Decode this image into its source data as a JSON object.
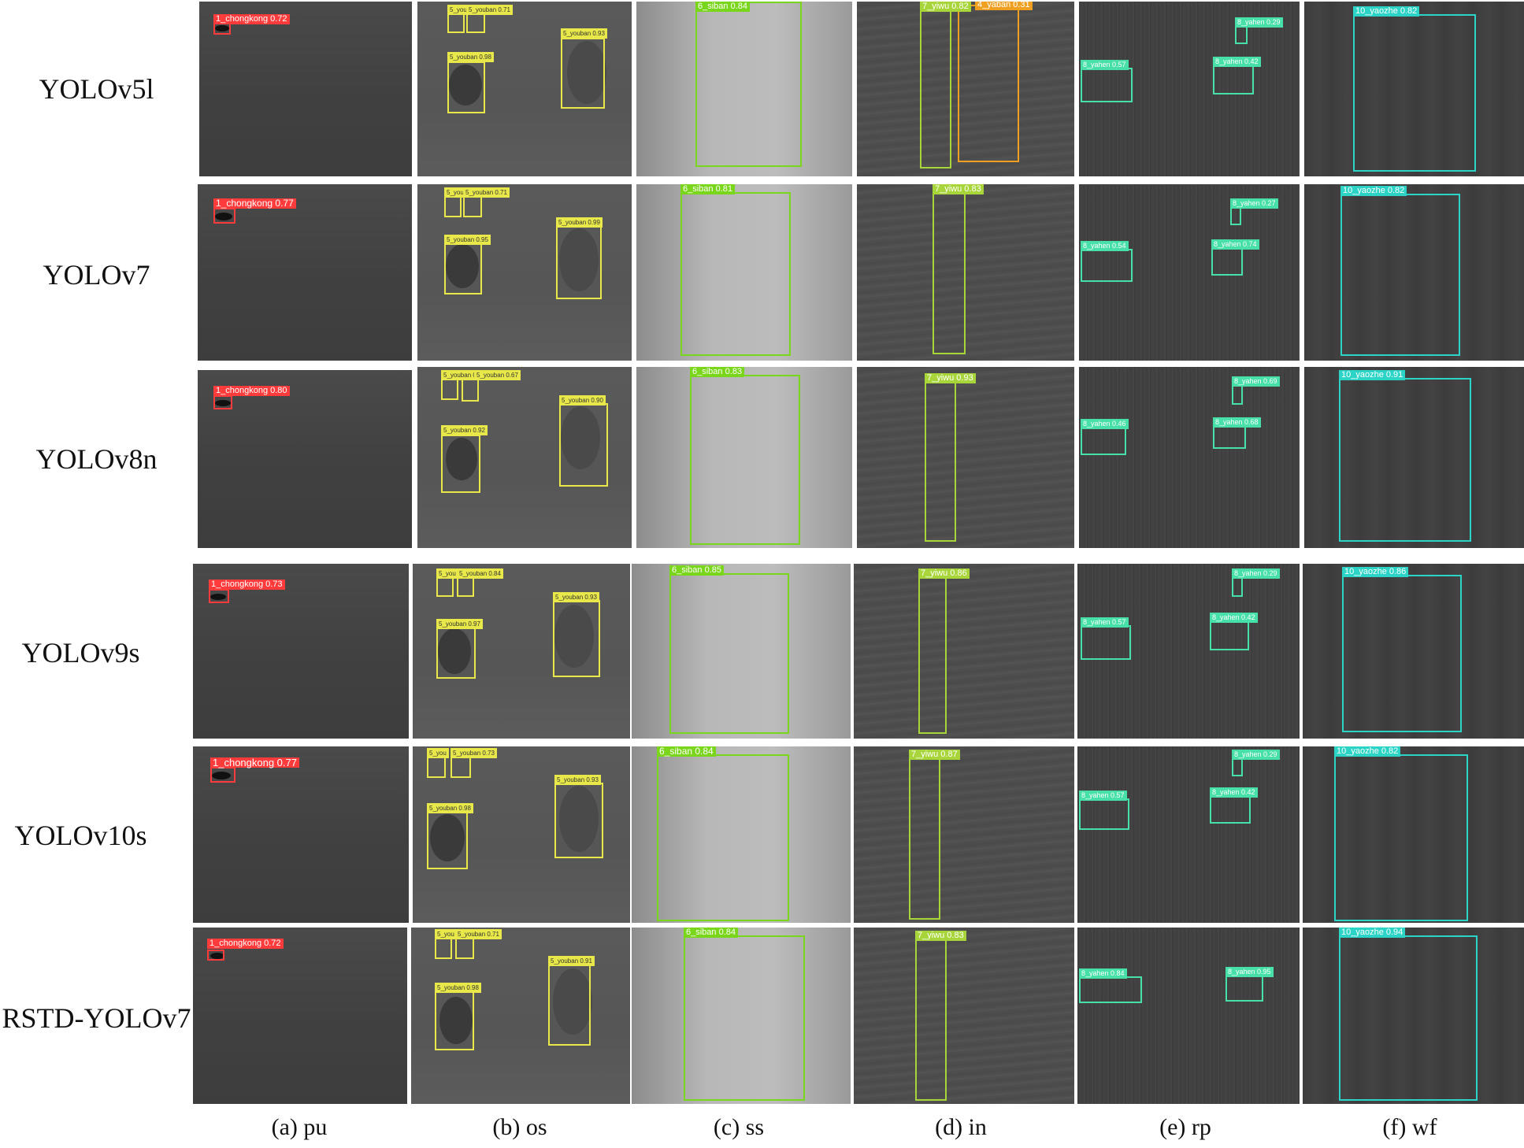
{
  "row_labels": [
    "YOLOv5l",
    "YOLOv7",
    "YOLOv8n",
    "YOLOv9s",
    "YOLOv10s",
    "RSTD-YOLOv7"
  ],
  "column_labels": [
    "(a) pu",
    "(b) os",
    "(c) ss",
    "(d) in",
    "(e) rp",
    "(f) wf"
  ],
  "colors": {
    "chongkong": "#ff3b3b",
    "youban": "#e8e84a",
    "siban": "#7ad61a",
    "yiwu": "#a8d63a",
    "yaban": "#f0a020",
    "yahen": "#47e0a8",
    "yaozhe": "#2cd4c8"
  },
  "detections": {
    "r0": {
      "pu": [
        "1_chongkong 0.72"
      ],
      "os": [
        "5_youb",
        "5_youban 0.71",
        "5_youban 0.98",
        "5_youban 0.93"
      ],
      "ss": [
        "6_siban 0.84"
      ],
      "in": [
        "7_yiwu 0.82",
        "4_yaban 0.31"
      ],
      "rp": [
        "8_yahen 0.29",
        "8_yahen 0.57",
        "8_yahen 0.42"
      ],
      "wf": [
        "10_yaozhe 0.82"
      ]
    },
    "r1": {
      "pu": [
        "1_chongkong 0.77"
      ],
      "os": [
        "5_you",
        "5_youban 0.71",
        "5_youban 0.95",
        "5_youban 0.99"
      ],
      "ss": [
        "6_siban 0.81"
      ],
      "in": [
        "7_yiwu 0.83"
      ],
      "rp": [
        "8_yahen 0.27",
        "8_yahen 0.54",
        "8_yahen 0.74"
      ],
      "wf": [
        "10_yaozhe 0.82"
      ]
    },
    "r2": {
      "pu": [
        "1_chongkong 0.80"
      ],
      "os": [
        "5_youban 0.87",
        "5_youban 0.67",
        "5_youban 0.92",
        "5_youban 0.90"
      ],
      "ss": [
        "6_siban 0.83"
      ],
      "in": [
        "7_yiwu 0.93"
      ],
      "rp": [
        "8_yahen 0.69",
        "8_yahen 0.46",
        "8_yahen 0.68"
      ],
      "wf": [
        "10_yaozhe 0.91"
      ]
    },
    "r3": {
      "pu": [
        "1_chongkong 0.73"
      ],
      "os": [
        "5_you",
        "5_youban 0.84",
        "5_youban 0.97",
        "5_youban 0.93"
      ],
      "ss": [
        "6_siban 0.85"
      ],
      "in": [
        "7_yiwu 0.86"
      ],
      "rp": [
        "8_yahen 0.29",
        "8_yahen 0.57",
        "8_yahen 0.42"
      ],
      "wf": [
        "10_yaozhe 0.86"
      ]
    },
    "r4": {
      "pu": [
        "1_chongkong 0.77"
      ],
      "os": [
        "5_you",
        "5_youban 0.73",
        "5_youban 0.98",
        "5_youban 0.93"
      ],
      "ss": [
        "6_siban 0.84"
      ],
      "in": [
        "7_yiwu 0.87"
      ],
      "rp": [
        "8_yahen 0.29",
        "8_yahen 0.57",
        "8_yahen 0.42"
      ],
      "wf": [
        "10_yaozhe 0.82"
      ]
    },
    "r5": {
      "pu": [
        "1_chongkong 0.72"
      ],
      "os": [
        "5_you",
        "5_youban 0.71",
        "5_youban 0.98",
        "5_youban 0.91"
      ],
      "ss": [
        "6_siban 0.84"
      ],
      "in": [
        "7_yiwu 0.83"
      ],
      "rp": [
        "8_yahen 0.84",
        "8_yahen 0.95"
      ],
      "wf": [
        "10_yaozhe 0.94"
      ]
    }
  }
}
